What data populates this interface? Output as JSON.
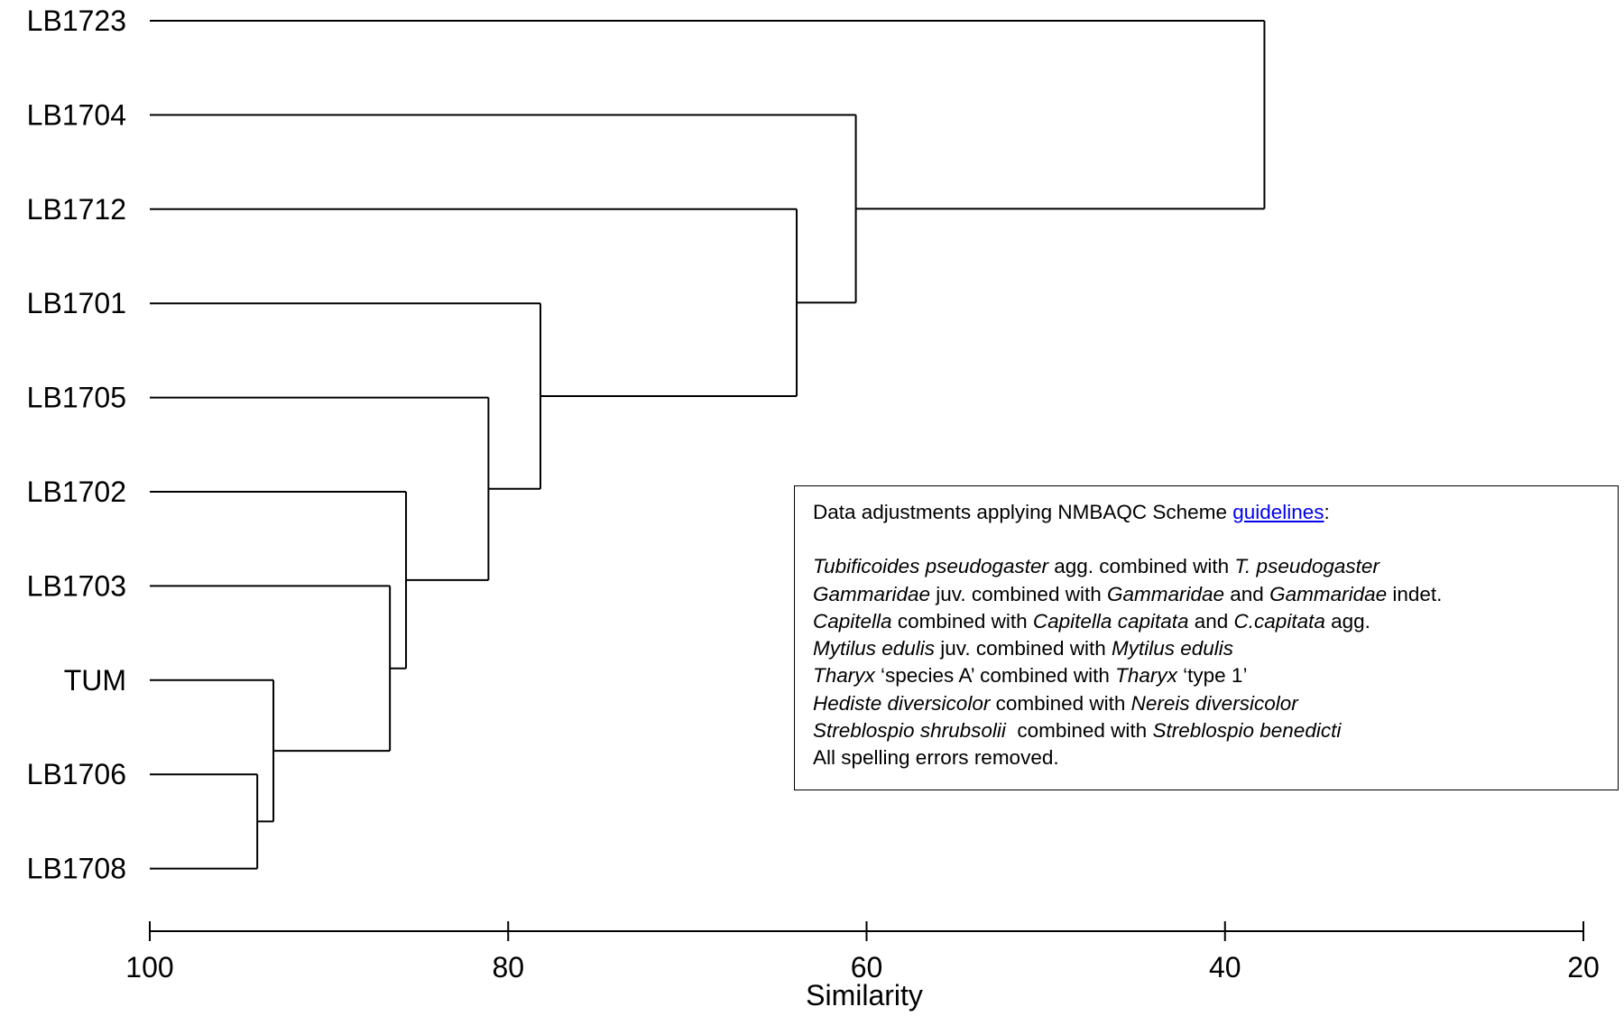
{
  "chart_data": {
    "type": "dendrogram",
    "xlabel": "Similarity",
    "xlim": [
      100,
      20
    ],
    "xticks": [
      100,
      80,
      60,
      40,
      20
    ],
    "leaves": [
      {
        "label": "LB1723",
        "color": "#000000"
      },
      {
        "label": "LB1704",
        "color": "#000000"
      },
      {
        "label": "LB1712",
        "color": "#000000"
      },
      {
        "label": "LB1701",
        "color": "#000000"
      },
      {
        "label": "LB1705",
        "color": "#000000"
      },
      {
        "label": "LB1702",
        "color": "#000000"
      },
      {
        "label": "LB1703",
        "color": "#000000"
      },
      {
        "label": "TUM",
        "color": "#ff0000"
      },
      {
        "label": "LB1706",
        "color": "#000000"
      },
      {
        "label": "LB1708",
        "color": "#000000"
      }
    ],
    "merges": [
      {
        "id": "m1",
        "children": [
          "LB1706",
          "LB1708"
        ],
        "similarity": 94.0
      },
      {
        "id": "m2",
        "children": [
          "TUM",
          "m1"
        ],
        "similarity": 93.1
      },
      {
        "id": "m3",
        "children": [
          "LB1703",
          "m2"
        ],
        "similarity": 86.6
      },
      {
        "id": "m4",
        "children": [
          "LB1702",
          "m3"
        ],
        "similarity": 85.7
      },
      {
        "id": "m5",
        "children": [
          "LB1705",
          "m4"
        ],
        "similarity": 81.1
      },
      {
        "id": "m6",
        "children": [
          "LB1701",
          "m5"
        ],
        "similarity": 78.2
      },
      {
        "id": "m7",
        "children": [
          "LB1712",
          "m6"
        ],
        "similarity": 63.9
      },
      {
        "id": "m8",
        "children": [
          "LB1704",
          "m7"
        ],
        "similarity": 60.6
      },
      {
        "id": "m9",
        "children": [
          "LB1723",
          "m8"
        ],
        "similarity": 37.8
      }
    ]
  },
  "notes": {
    "heading_prefix": "Data adjustments applying NMBAQC Scheme ",
    "heading_link": "guidelines",
    "heading_suffix": ":",
    "lines": [
      [
        {
          "t": "Tubificoides pseudogaster",
          "i": true
        },
        {
          "t": " agg. combined with ",
          "i": false
        },
        {
          "t": "T. pseudogaster",
          "i": true
        }
      ],
      [
        {
          "t": "Gammaridae",
          "i": true
        },
        {
          "t": " juv. combined with ",
          "i": false
        },
        {
          "t": "Gammaridae",
          "i": true
        },
        {
          "t": " and ",
          "i": false
        },
        {
          "t": "Gammaridae",
          "i": true
        },
        {
          "t": " indet.",
          "i": false
        }
      ],
      [
        {
          "t": "Capitella",
          "i": true
        },
        {
          "t": " combined with ",
          "i": false
        },
        {
          "t": "Capitella capitata",
          "i": true
        },
        {
          "t": " and ",
          "i": false
        },
        {
          "t": "C.capitata",
          "i": true
        },
        {
          "t": " agg.",
          "i": false
        }
      ],
      [
        {
          "t": "Mytilus edulis",
          "i": true
        },
        {
          "t": " juv. combined with ",
          "i": false
        },
        {
          "t": "Mytilus edulis",
          "i": true
        }
      ],
      [
        {
          "t": "Tharyx",
          "i": true
        },
        {
          "t": " ‘species A’ combined with ",
          "i": false
        },
        {
          "t": "Tharyx",
          "i": true
        },
        {
          "t": " ‘type 1’",
          "i": false
        }
      ],
      [
        {
          "t": "Hediste diversicolor",
          "i": true
        },
        {
          "t": " combined with ",
          "i": false
        },
        {
          "t": "Nereis diversicolor",
          "i": true
        }
      ],
      [
        {
          "t": "Streblospio shrubsolii",
          "i": true
        },
        {
          "t": "  combined with ",
          "i": false
        },
        {
          "t": "Streblospio benedicti",
          "i": true
        }
      ],
      [
        {
          "t": "All spelling errors removed.",
          "i": false
        }
      ]
    ]
  }
}
